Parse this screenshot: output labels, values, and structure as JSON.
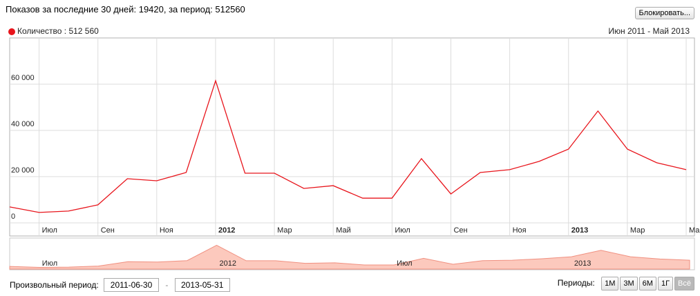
{
  "header": {
    "title": "Показов за последние 30 дней: 19420, за период: 512560",
    "block_button": "Блокировать..."
  },
  "chart_data": {
    "type": "line",
    "subtitle": "Июн 2011 - Май 2013",
    "categories": [
      null,
      "Июл",
      null,
      "Сен",
      null,
      "Ноя",
      null,
      "2012",
      null,
      "Мар",
      null,
      "Май",
      null,
      "Июл",
      null,
      "Сен",
      null,
      "Ноя",
      null,
      "2013",
      null,
      "Мар",
      null,
      "Май"
    ],
    "series": [
      {
        "name": "Количество : 512 560",
        "color": "#e8141b",
        "values": [
          6900,
          4500,
          5100,
          7800,
          19100,
          18200,
          21800,
          61500,
          21500,
          21500,
          14900,
          16100,
          10700,
          10700,
          27800,
          12500,
          21800,
          23000,
          26600,
          31900,
          48400,
          31900,
          26000,
          23000
        ]
      }
    ],
    "ylim": [
      0,
      80000
    ],
    "yticks": [
      0,
      {
        "value": 20000,
        "label": "20 000"
      },
      {
        "value": 40000,
        "label": "40 000"
      },
      {
        "value": 60000,
        "label": "60 000"
      }
    ],
    "grid": true,
    "navigator": {
      "fill": "#fcc9bd",
      "stroke": "#f09080"
    }
  },
  "controls": {
    "custom_label": "Произвольный период:",
    "date_from": "2011-06-30",
    "separator": "-",
    "date_to": "2013-05-31",
    "periods_label": "Периоды:",
    "periods": [
      "1М",
      "3М",
      "6М",
      "1Г",
      "Всё"
    ]
  }
}
